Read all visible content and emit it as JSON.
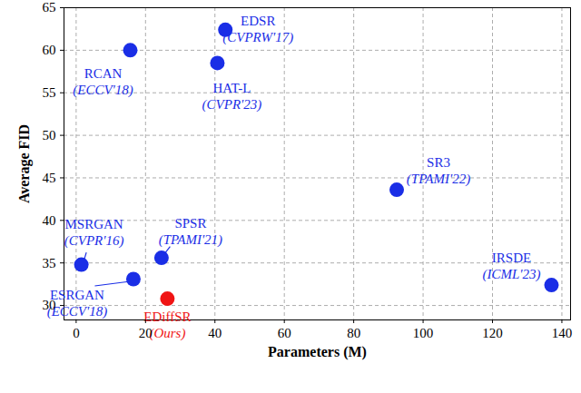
{
  "chart_data": {
    "type": "scatter",
    "x_label": "Parameters (M)",
    "y_label": "Average FID",
    "xlim": [
      -3.5,
      142.5
    ],
    "ylim": [
      28.3,
      65
    ],
    "xticks": [
      0,
      20,
      40,
      60,
      80,
      100,
      120,
      140
    ],
    "yticks": [
      30,
      35,
      40,
      45,
      50,
      55,
      60,
      65
    ],
    "grid": true,
    "marker": "circle",
    "points": [
      {
        "name": "MSRGAN",
        "venue": "(CVPR'16)",
        "x": 1.5,
        "y": 34.8,
        "color": "#1a2ee6"
      },
      {
        "name": "ESRGAN",
        "venue": "(ECCV'18)",
        "x": 16.5,
        "y": 33.1,
        "color": "#1a2ee6"
      },
      {
        "name": "SPSR",
        "venue": "(TPAMI'21)",
        "x": 24.6,
        "y": 35.6,
        "color": "#1a2ee6"
      },
      {
        "name": "EDiffSR",
        "venue": "(Ours)",
        "x": 26.3,
        "y": 30.8,
        "color": "#f01414"
      },
      {
        "name": "RCAN",
        "venue": "(ECCV'18)",
        "x": 15.6,
        "y": 60.0,
        "color": "#1a2ee6"
      },
      {
        "name": "EDSR",
        "venue": "(CVPRW'17)",
        "x": 43.0,
        "y": 62.4,
        "color": "#1a2ee6"
      },
      {
        "name": "HAT-L",
        "venue": "(CVPR'23)",
        "x": 40.7,
        "y": 58.5,
        "color": "#1a2ee6"
      },
      {
        "name": "SR3",
        "venue": "(TPAMI'22)",
        "x": 92.4,
        "y": 43.6,
        "color": "#1a2ee6"
      },
      {
        "name": "IRSDE",
        "venue": "(ICML'23)",
        "x": 137.0,
        "y": 32.4,
        "color": "#1a2ee6"
      }
    ]
  }
}
